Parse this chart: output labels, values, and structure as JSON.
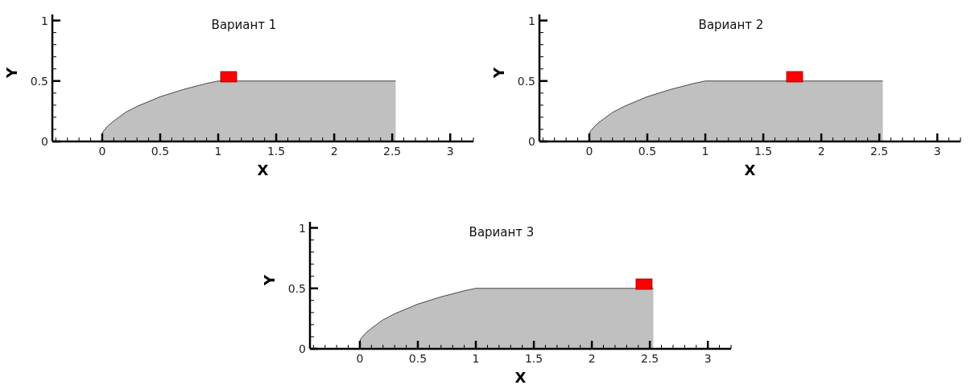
{
  "chart_data": [
    {
      "type": "area",
      "title": "Вариант 1",
      "xlabel": "X",
      "ylabel": "Y",
      "xlim": [
        -0.43,
        3.2
      ],
      "ylim": [
        0,
        1.05
      ],
      "grid": false,
      "legend": false,
      "xticks": [
        {
          "value": -0.4,
          "label": null
        },
        {
          "value": -0.3,
          "label": null
        },
        {
          "value": -0.2,
          "label": null
        },
        {
          "value": -0.1,
          "label": null
        },
        0,
        {
          "value": 0.1,
          "label": null
        },
        {
          "value": 0.2,
          "label": null
        },
        {
          "value": 0.3,
          "label": null
        },
        {
          "value": 0.4,
          "label": null
        },
        0.5,
        {
          "value": 0.6,
          "label": null
        },
        {
          "value": 0.7,
          "label": null
        },
        {
          "value": 0.8,
          "label": null
        },
        {
          "value": 0.9,
          "label": null
        },
        1,
        {
          "value": 1.1,
          "label": null
        },
        {
          "value": 1.2,
          "label": null
        },
        {
          "value": 1.3,
          "label": null
        },
        {
          "value": 1.4,
          "label": null
        },
        1.5,
        {
          "value": 1.6,
          "label": null
        },
        {
          "value": 1.7,
          "label": null
        },
        {
          "value": 1.8,
          "label": null
        },
        {
          "value": 1.9,
          "label": null
        },
        2,
        {
          "value": 2.1,
          "label": null
        },
        {
          "value": 2.2,
          "label": null
        },
        {
          "value": 2.3,
          "label": null
        },
        {
          "value": 2.4,
          "label": null
        },
        2.5,
        {
          "value": 2.6,
          "label": null
        },
        {
          "value": 2.7,
          "label": null
        },
        {
          "value": 2.8,
          "label": null
        },
        {
          "value": 2.9,
          "label": null
        },
        3,
        {
          "value": 3.1,
          "label": null
        },
        {
          "value": 3.2,
          "label": null
        }
      ],
      "yticks": [
        0,
        {
          "value": 0.1,
          "label": null
        },
        {
          "value": 0.2,
          "label": null
        },
        {
          "value": 0.3,
          "label": null
        },
        {
          "value": 0.4,
          "label": null
        },
        0.5,
        {
          "value": 0.6,
          "label": null
        },
        {
          "value": 0.7,
          "label": null
        },
        {
          "value": 0.8,
          "label": null
        },
        {
          "value": 0.9,
          "label": null
        },
        1
      ],
      "series": [
        {
          "type": "area",
          "color": "#c0c0c0",
          "x": [
            0,
            0.005,
            0.05,
            0.1,
            0.2,
            0.3,
            0.5,
            0.7,
            0.9,
            1,
            2.53
          ],
          "values": [
            0,
            0.08,
            0.13,
            0.17,
            0.24,
            0.29,
            0.37,
            0.43,
            0.48,
            0.5,
            0.5
          ]
        },
        {
          "type": "scatter",
          "color": "#ff0000",
          "marker": "square",
          "x": [
            1.09
          ],
          "values": [
            0.535
          ]
        }
      ]
    },
    {
      "type": "area",
      "title": "Вариант 2",
      "xlabel": "X",
      "ylabel": "Y",
      "xlim": [
        -0.43,
        3.2
      ],
      "ylim": [
        0,
        1.05
      ],
      "grid": false,
      "legend": false,
      "xticks": [
        {
          "value": -0.4,
          "label": null
        },
        {
          "value": -0.3,
          "label": null
        },
        {
          "value": -0.2,
          "label": null
        },
        {
          "value": -0.1,
          "label": null
        },
        0,
        {
          "value": 0.1,
          "label": null
        },
        {
          "value": 0.2,
          "label": null
        },
        {
          "value": 0.3,
          "label": null
        },
        {
          "value": 0.4,
          "label": null
        },
        0.5,
        {
          "value": 0.6,
          "label": null
        },
        {
          "value": 0.7,
          "label": null
        },
        {
          "value": 0.8,
          "label": null
        },
        {
          "value": 0.9,
          "label": null
        },
        1,
        {
          "value": 1.1,
          "label": null
        },
        {
          "value": 1.2,
          "label": null
        },
        {
          "value": 1.3,
          "label": null
        },
        {
          "value": 1.4,
          "label": null
        },
        1.5,
        {
          "value": 1.6,
          "label": null
        },
        {
          "value": 1.7,
          "label": null
        },
        {
          "value": 1.8,
          "label": null
        },
        {
          "value": 1.9,
          "label": null
        },
        2,
        {
          "value": 2.1,
          "label": null
        },
        {
          "value": 2.2,
          "label": null
        },
        {
          "value": 2.3,
          "label": null
        },
        {
          "value": 2.4,
          "label": null
        },
        2.5,
        {
          "value": 2.6,
          "label": null
        },
        {
          "value": 2.7,
          "label": null
        },
        {
          "value": 2.8,
          "label": null
        },
        {
          "value": 2.9,
          "label": null
        },
        3,
        {
          "value": 3.1,
          "label": null
        },
        {
          "value": 3.2,
          "label": null
        }
      ],
      "yticks": [
        0,
        {
          "value": 0.1,
          "label": null
        },
        {
          "value": 0.2,
          "label": null
        },
        {
          "value": 0.3,
          "label": null
        },
        {
          "value": 0.4,
          "label": null
        },
        0.5,
        {
          "value": 0.6,
          "label": null
        },
        {
          "value": 0.7,
          "label": null
        },
        {
          "value": 0.8,
          "label": null
        },
        {
          "value": 0.9,
          "label": null
        },
        1
      ],
      "series": [
        {
          "type": "area",
          "color": "#c0c0c0",
          "x": [
            0,
            0.005,
            0.05,
            0.1,
            0.2,
            0.3,
            0.5,
            0.7,
            0.9,
            1,
            2.53
          ],
          "values": [
            0,
            0.08,
            0.13,
            0.17,
            0.24,
            0.29,
            0.37,
            0.43,
            0.48,
            0.5,
            0.5
          ]
        },
        {
          "type": "scatter",
          "color": "#ff0000",
          "marker": "square",
          "x": [
            1.77
          ],
          "values": [
            0.535
          ]
        }
      ]
    },
    {
      "type": "area",
      "title": "Вариант 3",
      "xlabel": "X",
      "ylabel": "Y",
      "xlim": [
        -0.43,
        3.2
      ],
      "ylim": [
        0,
        1.05
      ],
      "grid": false,
      "legend": false,
      "xticks": [
        {
          "value": -0.4,
          "label": null
        },
        {
          "value": -0.3,
          "label": null
        },
        {
          "value": -0.2,
          "label": null
        },
        {
          "value": -0.1,
          "label": null
        },
        0,
        {
          "value": 0.1,
          "label": null
        },
        {
          "value": 0.2,
          "label": null
        },
        {
          "value": 0.3,
          "label": null
        },
        {
          "value": 0.4,
          "label": null
        },
        0.5,
        {
          "value": 0.6,
          "label": null
        },
        {
          "value": 0.7,
          "label": null
        },
        {
          "value": 0.8,
          "label": null
        },
        {
          "value": 0.9,
          "label": null
        },
        1,
        {
          "value": 1.1,
          "label": null
        },
        {
          "value": 1.2,
          "label": null
        },
        {
          "value": 1.3,
          "label": null
        },
        {
          "value": 1.4,
          "label": null
        },
        1.5,
        {
          "value": 1.6,
          "label": null
        },
        {
          "value": 1.7,
          "label": null
        },
        {
          "value": 1.8,
          "label": null
        },
        {
          "value": 1.9,
          "label": null
        },
        2,
        {
          "value": 2.1,
          "label": null
        },
        {
          "value": 2.2,
          "label": null
        },
        {
          "value": 2.3,
          "label": null
        },
        {
          "value": 2.4,
          "label": null
        },
        2.5,
        {
          "value": 2.6,
          "label": null
        },
        {
          "value": 2.7,
          "label": null
        },
        {
          "value": 2.8,
          "label": null
        },
        {
          "value": 2.9,
          "label": null
        },
        3,
        {
          "value": 3.1,
          "label": null
        },
        {
          "value": 3.2,
          "label": null
        }
      ],
      "yticks": [
        0,
        {
          "value": 0.1,
          "label": null
        },
        {
          "value": 0.2,
          "label": null
        },
        {
          "value": 0.3,
          "label": null
        },
        {
          "value": 0.4,
          "label": null
        },
        0.5,
        {
          "value": 0.6,
          "label": null
        },
        {
          "value": 0.7,
          "label": null
        },
        {
          "value": 0.8,
          "label": null
        },
        {
          "value": 0.9,
          "label": null
        },
        1
      ],
      "series": [
        {
          "type": "area",
          "color": "#c0c0c0",
          "x": [
            0,
            0.005,
            0.05,
            0.1,
            0.2,
            0.3,
            0.5,
            0.7,
            0.9,
            1,
            2.53
          ],
          "values": [
            0,
            0.08,
            0.13,
            0.17,
            0.24,
            0.29,
            0.37,
            0.43,
            0.48,
            0.5,
            0.5
          ]
        },
        {
          "type": "scatter",
          "color": "#ff0000",
          "marker": "square",
          "x": [
            2.45
          ],
          "values": [
            0.535
          ]
        }
      ]
    }
  ]
}
